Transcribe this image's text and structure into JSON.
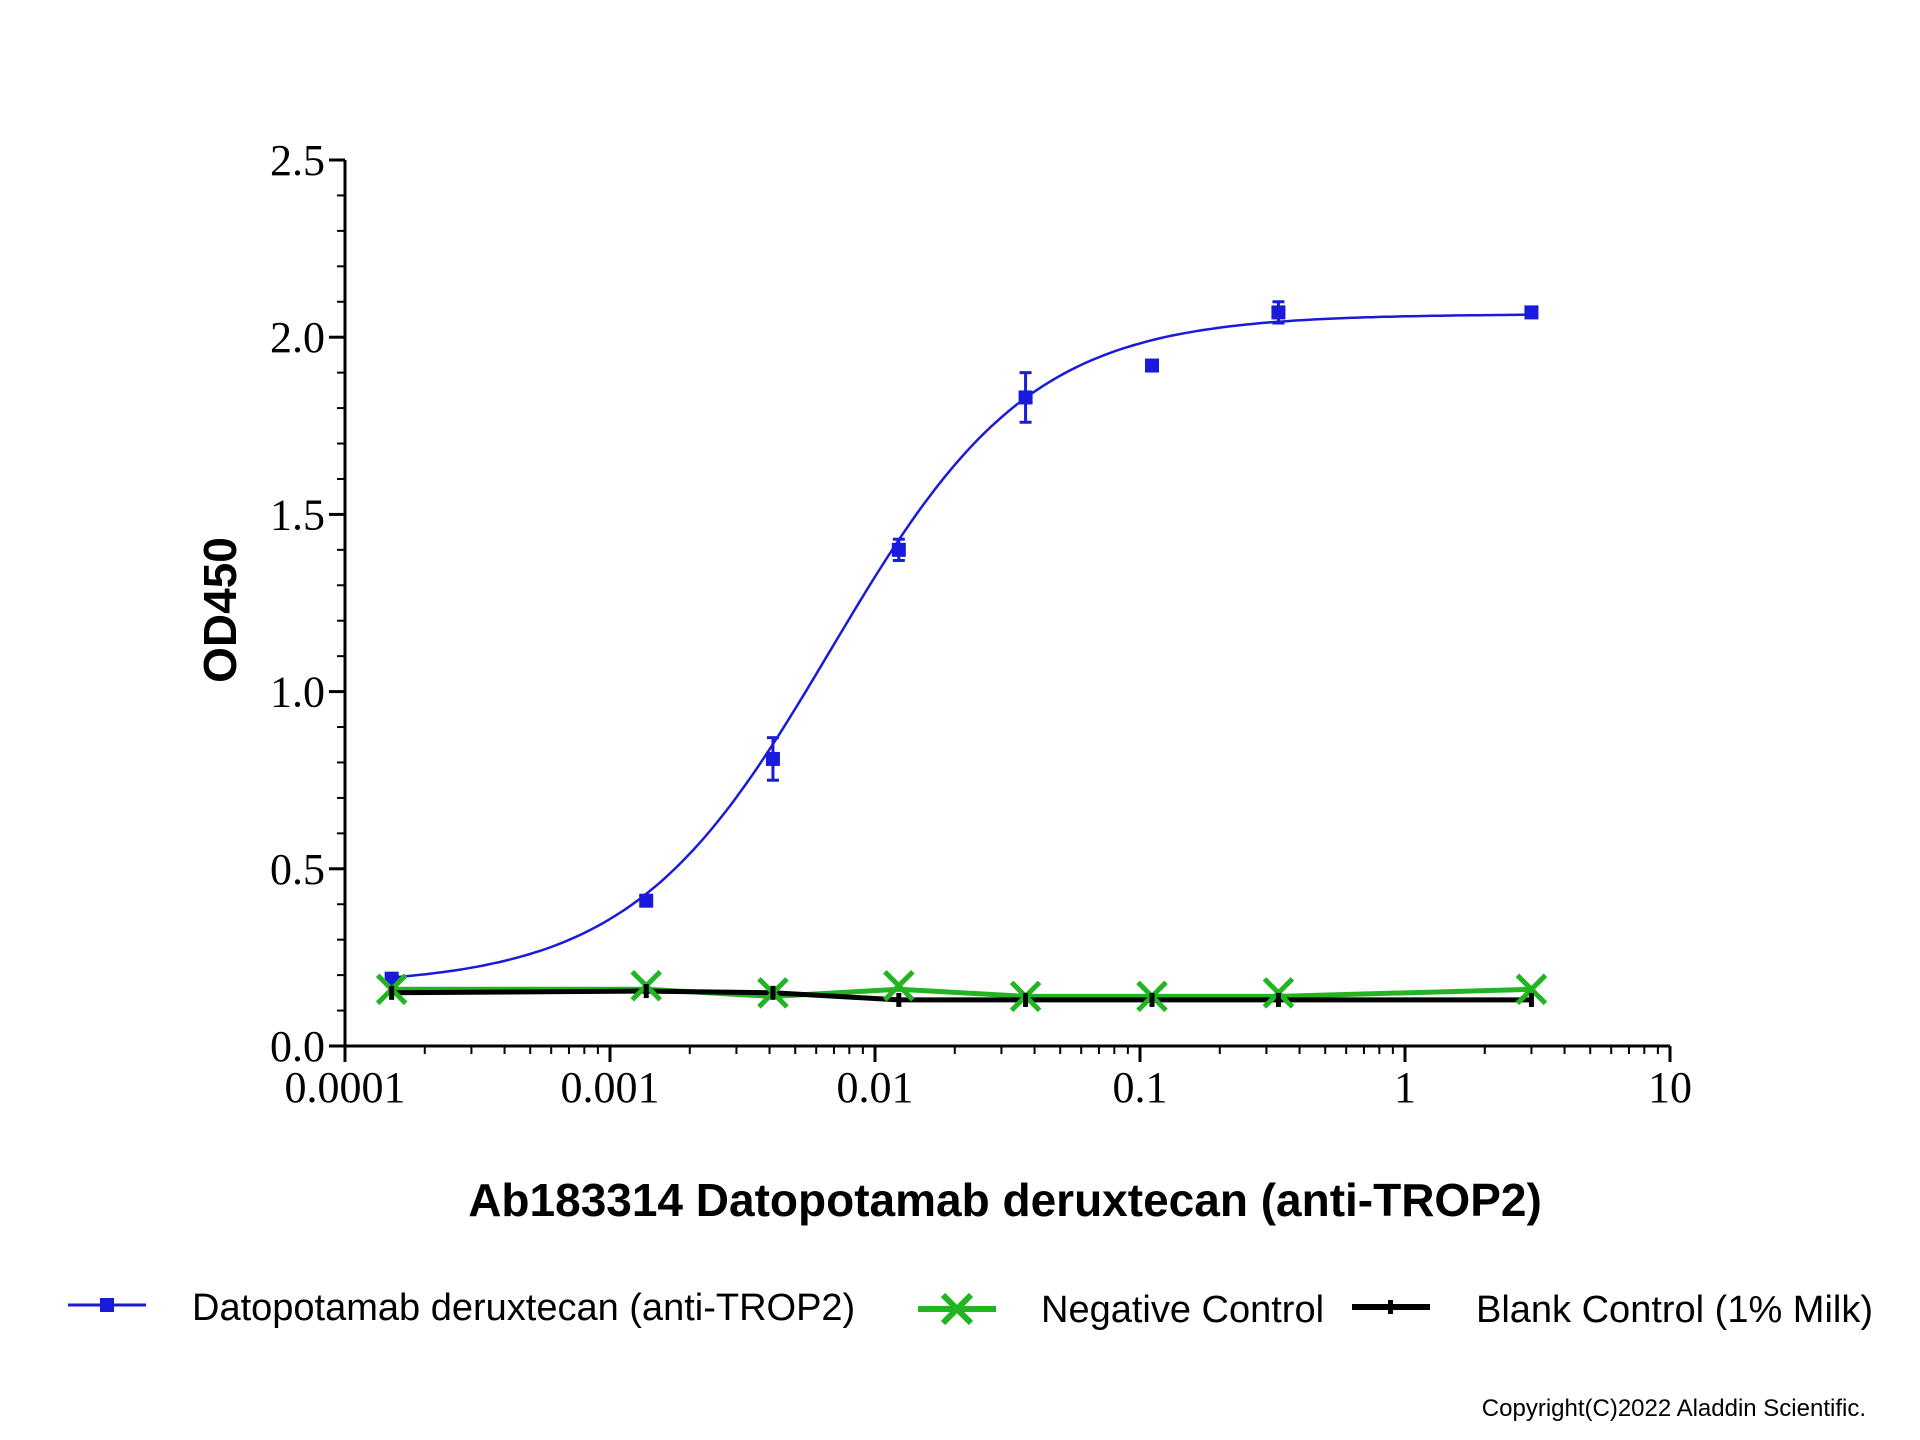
{
  "chart_data": {
    "type": "scatter",
    "xlabel": "Ab183314 Datopotamab deruxtecan (anti-TROP2)",
    "ylabel": "OD450",
    "xscale": "log",
    "xlim": [
      0.0001,
      10
    ],
    "ylim": [
      0,
      2.5
    ],
    "x_ticks": [
      "0.0001",
      "0.001",
      "0.01",
      "0.1",
      "1",
      "10"
    ],
    "y_ticks": [
      "0.0",
      "0.5",
      "1.0",
      "1.5",
      "2.0",
      "2.5"
    ],
    "grid": false,
    "legend_position": "bottom",
    "series": [
      {
        "name": "Datopotamab deruxtecan (anti-TROP2)",
        "color": "#1a1adb",
        "marker": "square",
        "x": [
          0.00015,
          0.00137,
          0.00412,
          0.0123,
          0.037,
          0.111,
          0.333,
          3.0
        ],
        "y": [
          0.19,
          0.41,
          0.81,
          1.4,
          1.83,
          1.92,
          2.07,
          2.07
        ],
        "error": [
          0.01,
          0.01,
          0.06,
          0.03,
          0.07,
          0.01,
          0.03,
          0.01
        ],
        "fit": {
          "model": "4PL",
          "bottom": 0.17,
          "top": 2.065,
          "ec50": 0.0068,
          "hill": 1.15
        }
      },
      {
        "name": "Negative Control",
        "color": "#22b522",
        "marker": "x",
        "x": [
          0.00015,
          0.00137,
          0.00412,
          0.0123,
          0.037,
          0.111,
          0.333,
          3.0
        ],
        "y": [
          0.16,
          0.17,
          0.15,
          0.17,
          0.14,
          0.14,
          0.15,
          0.16
        ]
      },
      {
        "name": "Blank Control (1% Milk)",
        "color": "#000000",
        "marker": "dash",
        "x": [
          0.00015,
          0.00137,
          0.00412,
          0.0123,
          0.037,
          0.111,
          0.333,
          3.0
        ],
        "y": [
          0.15,
          0.155,
          0.15,
          0.13,
          0.13,
          0.13,
          0.13,
          0.13
        ]
      }
    ]
  },
  "copyright": "Copyright(C)2022 Aladdin Scientific."
}
